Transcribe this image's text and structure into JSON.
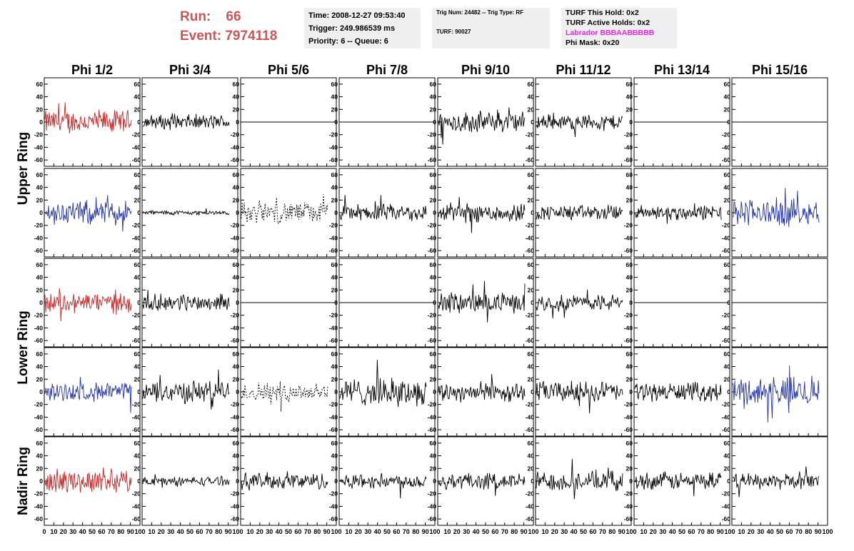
{
  "run_info": {
    "run_label": "Run:",
    "run_value": "66",
    "event_label": "Event:",
    "event_value": "7974118"
  },
  "info_box_1": {
    "time": "Time: 2008-12-27 09:53:40",
    "trigger": "Trigger: 249.986539 ms",
    "priority": "Priority: 6 -- Queue: 6"
  },
  "info_box_2": {
    "trig": "Trig Num: 24482 -- Trig Type: RF",
    "turf": "TURF: 90027"
  },
  "info_box_3": {
    "hold": "TURF This Hold: 0x2",
    "active": "TURF Active Holds: 0x2",
    "labrador": "Labrador BBBAABBBBB",
    "mask": "Phi Mask: 0x20"
  },
  "columns": [
    "Phi 1/2",
    "Phi 3/4",
    "Phi 5/6",
    "Phi 7/8",
    "Phi 9/10",
    "Phi 11/12",
    "Phi 13/14",
    "Phi 15/16"
  ],
  "rings": [
    "Upper Ring",
    "Lower Ring",
    "Nadir Ring"
  ],
  "colors": {
    "red": "#cc2222",
    "blue": "#2233aa",
    "black": "#000000",
    "run_text": "#cc5555",
    "labrador": "#ee22ee"
  },
  "chart_data": {
    "type": "line",
    "ylim": [
      -70,
      70
    ],
    "xlim": [
      0,
      100
    ],
    "y_ticks": [
      60,
      40,
      20,
      0,
      -20,
      -40,
      -60
    ],
    "x_ticks_first": [
      "0",
      "10",
      "20",
      "30",
      "40",
      "50",
      "60",
      "70",
      "80",
      "90",
      "100"
    ],
    "x_ticks_other": [
      "10",
      "20",
      "30",
      "40",
      "50",
      "60",
      "70",
      "80",
      "90",
      "100"
    ],
    "panels": [
      [
        {
          "style": "noise",
          "color": "red",
          "amp": 16
        },
        {
          "style": "noise",
          "color": "black",
          "amp": 10
        },
        {
          "style": "flat",
          "color": "black",
          "amp": 0
        },
        {
          "style": "flat",
          "color": "black",
          "amp": 0
        },
        {
          "style": "noise",
          "color": "black",
          "amp": 14
        },
        {
          "style": "noise",
          "color": "black",
          "amp": 10
        },
        {
          "style": "flat",
          "color": "black",
          "amp": 0
        },
        {
          "style": "flat",
          "color": "black",
          "amp": 0
        }
      ],
      [
        {
          "style": "noise",
          "color": "blue",
          "amp": 16
        },
        {
          "style": "noise",
          "color": "black",
          "amp": 3
        },
        {
          "style": "dashed",
          "color": "black",
          "amp": 14
        },
        {
          "style": "noise",
          "color": "black",
          "amp": 11
        },
        {
          "style": "noise",
          "color": "black",
          "amp": 13
        },
        {
          "style": "noise",
          "color": "black",
          "amp": 10
        },
        {
          "style": "noise",
          "color": "black",
          "amp": 10
        },
        {
          "style": "noise",
          "color": "blue",
          "amp": 18
        }
      ],
      [
        {
          "style": "noise",
          "color": "red",
          "amp": 14
        },
        {
          "style": "noise",
          "color": "black",
          "amp": 11
        },
        {
          "style": "flat",
          "color": "black",
          "amp": 0
        },
        {
          "style": "flat",
          "color": "black",
          "amp": 0
        },
        {
          "style": "noise",
          "color": "black",
          "amp": 13
        },
        {
          "style": "noise",
          "color": "black",
          "amp": 11
        },
        {
          "style": "flat",
          "color": "black",
          "amp": 0
        },
        {
          "style": "flat",
          "color": "black",
          "amp": 0
        }
      ],
      [
        {
          "style": "noise",
          "color": "blue",
          "amp": 12
        },
        {
          "style": "noise",
          "color": "black",
          "amp": 15
        },
        {
          "style": "dashed",
          "color": "black",
          "amp": 13
        },
        {
          "style": "noise",
          "color": "black",
          "amp": 18
        },
        {
          "style": "noise",
          "color": "black",
          "amp": 13
        },
        {
          "style": "noise",
          "color": "black",
          "amp": 14
        },
        {
          "style": "noise",
          "color": "black",
          "amp": 12
        },
        {
          "style": "noise",
          "color": "blue",
          "amp": 20
        }
      ],
      [
        {
          "style": "noise",
          "color": "red",
          "amp": 15
        },
        {
          "style": "noise",
          "color": "black",
          "amp": 6
        },
        {
          "style": "noise",
          "color": "black",
          "amp": 11
        },
        {
          "style": "noise",
          "color": "black",
          "amp": 10
        },
        {
          "style": "noise",
          "color": "black",
          "amp": 11
        },
        {
          "style": "noise",
          "color": "black",
          "amp": 13
        },
        {
          "style": "noise",
          "color": "black",
          "amp": 12
        },
        {
          "style": "noise",
          "color": "black",
          "amp": 10
        }
      ]
    ]
  }
}
